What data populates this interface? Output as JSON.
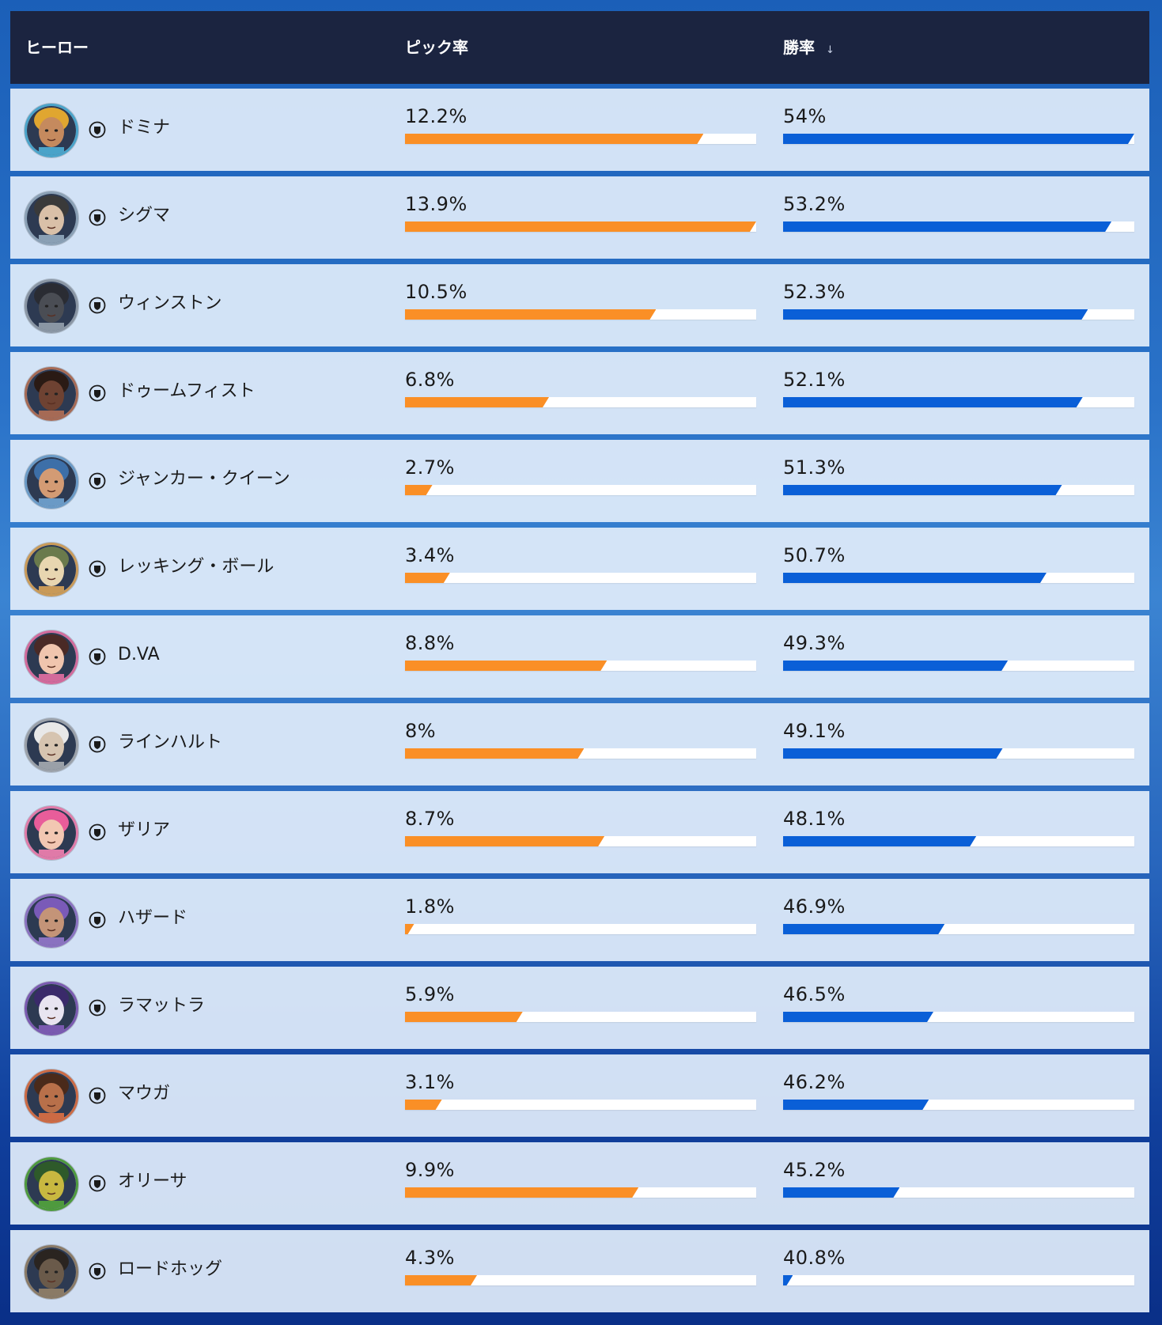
{
  "header": {
    "hero": "ヒーロー",
    "pick_rate": "ピック率",
    "win_rate": "勝率",
    "sort_icon": "arrow-down-icon"
  },
  "colors": {
    "pick_bar": "#fa8f26",
    "win_bar": "#0a5fd7",
    "header_bg": "#1b2440"
  },
  "rows": [
    {
      "name": "ドミナ",
      "pick": "12.2%",
      "pick_fill": 0.85,
      "win": "54%",
      "win_fill": 1.0,
      "avatar": "domina-portrait",
      "ring": "#4aa3c9",
      "skin": "#c58a5e",
      "hair": "#e0a630"
    },
    {
      "name": "シグマ",
      "pick": "13.9%",
      "pick_fill": 1.0,
      "win": "53.2%",
      "win_fill": 0.935,
      "avatar": "sigma-portrait",
      "ring": "#8aa0b5",
      "skin": "#d9c0a8",
      "hair": "#3a3a3a"
    },
    {
      "name": "ウィンストン",
      "pick": "10.5%",
      "pick_fill": 0.715,
      "win": "52.3%",
      "win_fill": 0.868,
      "avatar": "winston-portrait",
      "ring": "#8a96a4",
      "skin": "#4a4d54",
      "hair": "#2a2c33"
    },
    {
      "name": "ドゥームフィスト",
      "pick": "6.8%",
      "pick_fill": 0.41,
      "win": "52.1%",
      "win_fill": 0.853,
      "avatar": "doomfist-portrait",
      "ring": "#a66a55",
      "skin": "#6e4232",
      "hair": "#2a1a14"
    },
    {
      "name": "ジャンカー・クイーン",
      "pick": "2.7%",
      "pick_fill": 0.078,
      "win": "51.3%",
      "win_fill": 0.794,
      "avatar": "junker-queen-portrait",
      "ring": "#6a9ac6",
      "skin": "#d39b74",
      "hair": "#3d6fa8"
    },
    {
      "name": "レッキング・ボール",
      "pick": "3.4%",
      "pick_fill": 0.128,
      "win": "50.7%",
      "win_fill": 0.75,
      "avatar": "wrecking-ball-portrait",
      "ring": "#c99a58",
      "skin": "#e8d6b0",
      "hair": "#6a7a4c"
    },
    {
      "name": "D.VA",
      "pick": "8.8%",
      "pick_fill": 0.575,
      "win": "49.3%",
      "win_fill": 0.64,
      "avatar": "dva-portrait",
      "ring": "#d26a9b",
      "skin": "#f0c5ae",
      "hair": "#4a2a26"
    },
    {
      "name": "ラインハルト",
      "pick": "8%",
      "pick_fill": 0.51,
      "win": "49.1%",
      "win_fill": 0.625,
      "avatar": "reinhardt-portrait",
      "ring": "#9aa0a8",
      "skin": "#d6c4b0",
      "hair": "#e8e8e8"
    },
    {
      "name": "ザリア",
      "pick": "8.7%",
      "pick_fill": 0.568,
      "win": "48.1%",
      "win_fill": 0.55,
      "avatar": "zarya-portrait",
      "ring": "#e07aa8",
      "skin": "#f2c7b2",
      "hair": "#e85d9a"
    },
    {
      "name": "ハザード",
      "pick": "1.8%",
      "pick_fill": 0.026,
      "win": "46.9%",
      "win_fill": 0.46,
      "avatar": "hazard-portrait",
      "ring": "#8a72c0",
      "skin": "#c49478",
      "hair": "#7a5ab8"
    },
    {
      "name": "ラマットラ",
      "pick": "5.9%",
      "pick_fill": 0.335,
      "win": "46.5%",
      "win_fill": 0.428,
      "avatar": "ramattra-portrait",
      "ring": "#7a5ab0",
      "skin": "#e8e4f0",
      "hair": "#3a2a6a"
    },
    {
      "name": "マウガ",
      "pick": "3.1%",
      "pick_fill": 0.105,
      "win": "46.2%",
      "win_fill": 0.415,
      "avatar": "mauga-portrait",
      "ring": "#cc6a44",
      "skin": "#b8704a",
      "hair": "#4a2a1a"
    },
    {
      "name": "オリーサ",
      "pick": "9.9%",
      "pick_fill": 0.665,
      "win": "45.2%",
      "win_fill": 0.332,
      "avatar": "orisa-portrait",
      "ring": "#4e9a3e",
      "skin": "#c8b840",
      "hair": "#2e5a2a"
    },
    {
      "name": "ロードホッグ",
      "pick": "4.3%",
      "pick_fill": 0.205,
      "win": "40.8%",
      "win_fill": 0.028,
      "avatar": "roadhog-portrait",
      "ring": "#8a7a66",
      "skin": "#6a5a4a",
      "hair": "#2a2420"
    }
  ]
}
